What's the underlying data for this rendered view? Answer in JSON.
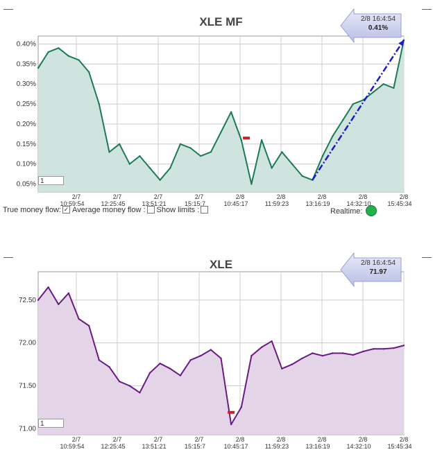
{
  "charts": [
    {
      "id": "top",
      "title": "XLE MF",
      "callout_time": "2/8 16:4:54",
      "callout_value": "0.41%",
      "input_value": "1",
      "fill": "#cfe4df",
      "line": "#1b7a55",
      "y_ticks": [
        "0.40%",
        "0.35%",
        "0.30%",
        "0.25%",
        "0.20%",
        "0.15%",
        "0.10%",
        "0.05%"
      ],
      "x_ticks": [
        {
          "d": "2/7",
          "t": "10:59:54"
        },
        {
          "d": "2/7",
          "t": "12:25:45"
        },
        {
          "d": "2/7",
          "t": "13:51:21"
        },
        {
          "d": "2/7",
          "t": "15:15:7"
        },
        {
          "d": "2/8",
          "t": "10:45:17"
        },
        {
          "d": "2/8",
          "t": "11:59:23"
        },
        {
          "d": "2/8",
          "t": "13:16:19"
        },
        {
          "d": "2/8",
          "t": "14:32:10"
        },
        {
          "d": "2/8",
          "t": "15:45:34"
        }
      ]
    },
    {
      "id": "bottom",
      "title": "XLE",
      "callout_time": "2/8 16:4:54",
      "callout_value": "71.97",
      "input_value": "1",
      "fill": "#e3d4e8",
      "line": "#6a1a80",
      "y_ticks": [
        "72.50",
        "72.00",
        "71.50",
        "71.00"
      ],
      "x_ticks": [
        {
          "d": "2/7",
          "t": "10:59:54"
        },
        {
          "d": "2/7",
          "t": "12:25:45"
        },
        {
          "d": "2/7",
          "t": "13:51:21"
        },
        {
          "d": "2/7",
          "t": "15:15:7"
        },
        {
          "d": "2/8",
          "t": "10:45:17"
        },
        {
          "d": "2/8",
          "t": "11:59:23"
        },
        {
          "d": "2/8",
          "t": "13:16:19"
        },
        {
          "d": "2/8",
          "t": "14:32:10"
        },
        {
          "d": "2/8",
          "t": "15:45:34"
        }
      ]
    }
  ],
  "controls": {
    "true_money_flow": "True money flow:",
    "true_money_flow_checked": true,
    "average_money_flow": "Average money flow :",
    "show_limits": "Show limits :",
    "realtime": "Realtime:"
  },
  "chart_data": [
    {
      "type": "area",
      "title": "XLE MF",
      "x": [
        0,
        4,
        8,
        12,
        16,
        20,
        24,
        28,
        32,
        36,
        40,
        44,
        48,
        52,
        56,
        60,
        64,
        68,
        72,
        76,
        80,
        84,
        88,
        92,
        96,
        100,
        104,
        108,
        112,
        116,
        120,
        124,
        128,
        132,
        136,
        140,
        144
      ],
      "y": [
        0.34,
        0.38,
        0.39,
        0.37,
        0.36,
        0.33,
        0.25,
        0.13,
        0.15,
        0.1,
        0.12,
        0.09,
        0.06,
        0.09,
        0.15,
        0.14,
        0.12,
        0.13,
        0.18,
        0.23,
        0.16,
        0.05,
        0.16,
        0.09,
        0.13,
        0.1,
        0.07,
        0.06,
        0.12,
        0.17,
        0.21,
        0.25,
        0.26,
        0.28,
        0.3,
        0.29,
        0.41
      ],
      "ylim": [
        0.03,
        0.42
      ],
      "trendline": {
        "from": [
          108,
          0.06
        ],
        "to": [
          144,
          0.41
        ]
      },
      "series": [
        {
          "values_ref": "y"
        }
      ]
    },
    {
      "type": "area",
      "title": "XLE",
      "x": [
        0,
        4,
        8,
        12,
        16,
        20,
        24,
        28,
        32,
        36,
        40,
        44,
        48,
        52,
        56,
        60,
        64,
        68,
        72,
        76,
        80,
        84,
        88,
        92,
        96,
        100,
        104,
        108,
        112,
        116,
        120,
        124,
        128,
        132,
        136,
        140,
        144
      ],
      "y": [
        72.5,
        72.65,
        72.45,
        72.58,
        72.28,
        72.2,
        71.8,
        71.72,
        71.55,
        71.5,
        71.42,
        71.65,
        71.76,
        71.7,
        71.62,
        71.8,
        71.85,
        71.92,
        71.82,
        71.05,
        71.25,
        71.85,
        71.95,
        72.02,
        71.7,
        71.75,
        71.82,
        71.88,
        71.85,
        71.88,
        71.88,
        71.86,
        71.9,
        71.93,
        71.93,
        71.94,
        71.97
      ],
      "ylim": [
        70.93,
        72.83
      ],
      "series": [
        {
          "values_ref": "y"
        }
      ]
    }
  ]
}
